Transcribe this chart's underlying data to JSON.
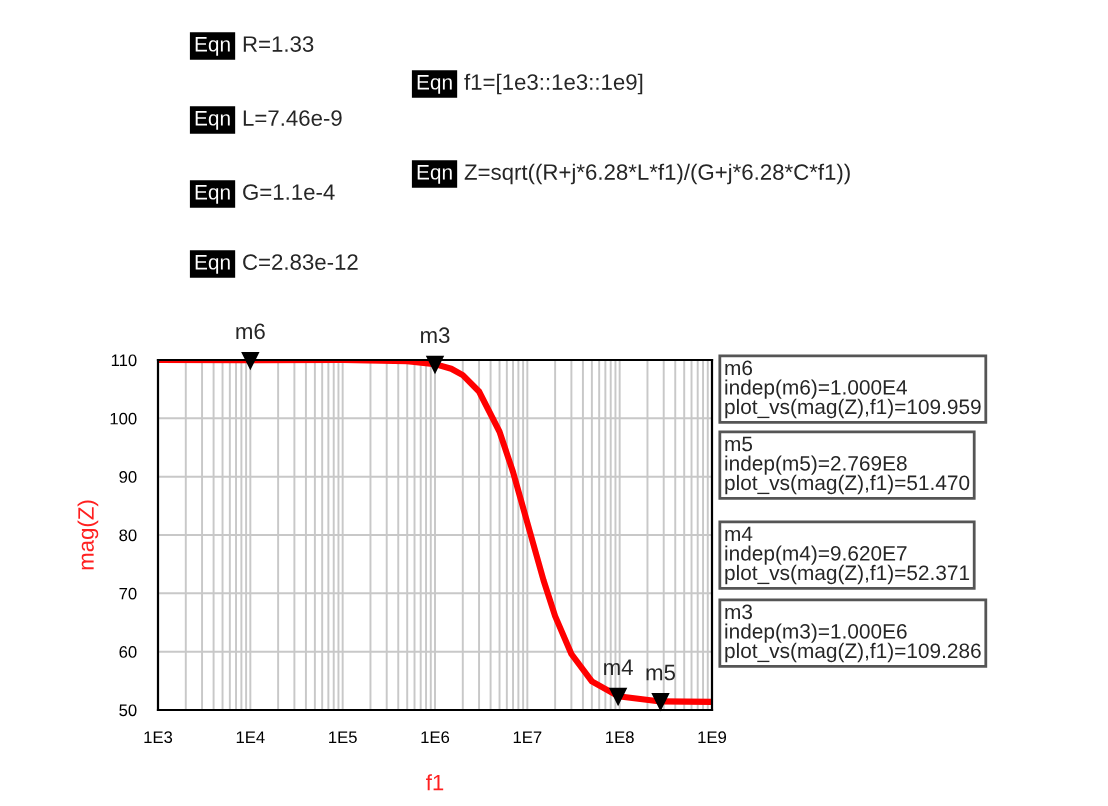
{
  "chart_data": {
    "type": "line",
    "xlabel": "f1",
    "ylabel": "mag(Z)",
    "log": "x",
    "grid": true,
    "marker": "none",
    "line_style": "solid",
    "xlim": [
      1000,
      1000000000
    ],
    "ylim": [
      50,
      110
    ],
    "xticks": [
      {
        "value": 1000,
        "label": "1E3"
      },
      {
        "value": 10000,
        "label": "1E4"
      },
      {
        "value": 100000,
        "label": "1E5"
      },
      {
        "value": 1000000,
        "label": "1E6"
      },
      {
        "value": 10000000,
        "label": "1E7"
      },
      {
        "value": 100000000,
        "label": "1E8"
      },
      {
        "value": 1000000000,
        "label": "1E9"
      }
    ],
    "yticks": [
      50,
      60,
      70,
      80,
      90,
      100,
      110
    ],
    "series": [
      {
        "color": "#ff0000",
        "x": [
          1000,
          10000,
          100000,
          500000,
          1000000,
          1500000,
          2000000,
          3000000,
          5000000,
          7000000,
          10000000,
          15000000,
          20000000,
          30000000,
          50000000,
          96200000,
          276900000,
          1000000000
        ],
        "values": [
          110,
          109.959,
          110,
          109.8,
          109.286,
          108.5,
          107.4,
          104.6,
          97.7,
          90.8,
          82.1,
          72.2,
          66.1,
          59.6,
          54.9,
          52.371,
          51.47,
          51.4
        ]
      }
    ],
    "annotations": [
      "Eqn R=1.33",
      "Eqn L=7.46e-9",
      "Eqn G=1.1e-4",
      "Eqn C=2.83e-12",
      "Eqn f1=[1e3::1e3::1e9]",
      "Eqn Z=sqrt((R+j*6.28*L*f1)/(G+j*6.28*C*f1))",
      {
        "text": "m6",
        "x": 10000,
        "y": 109.959
      },
      {
        "text": "m3",
        "x": 1000000,
        "y": 109.286
      },
      {
        "text": "m4",
        "x": 96200000,
        "y": 52.371
      },
      {
        "text": "m5",
        "x": 276900000,
        "y": 51.47
      },
      "m6\nindep(m6)=1.000E4\nplot_vs(mag(Z),f1)=109.959",
      "m5\nindep(m5)=2.769E8\nplot_vs(mag(Z),f1)=51.470",
      "m4\nindep(m4)=9.620E7\nplot_vs(mag(Z),f1)=52.371",
      "m3\nindep(m3)=1.000E6\nplot_vs(mag(Z),f1)=109.286"
    ]
  }
}
